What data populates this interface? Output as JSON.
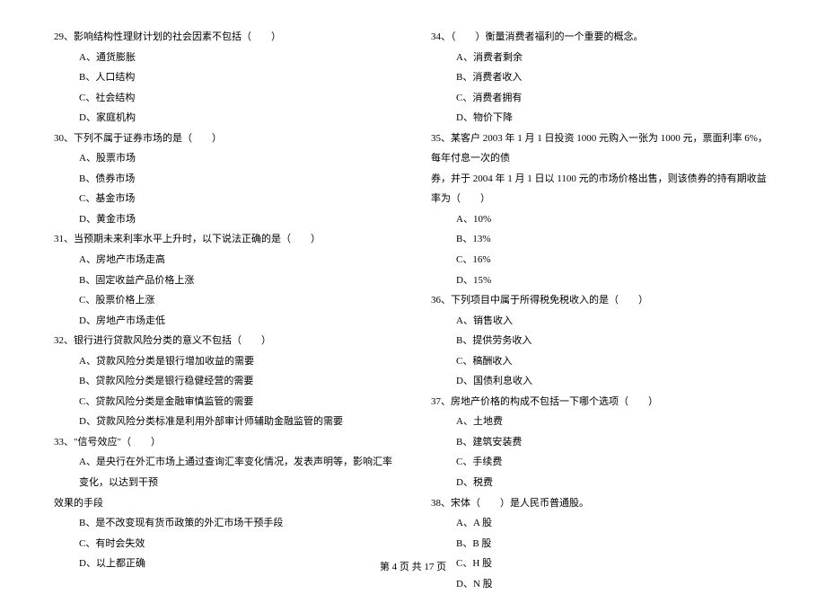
{
  "left_column": {
    "q29": {
      "text": "29、影响结构性理财计划的社会因素不包括（　　）",
      "options": {
        "a": "A、通货膨胀",
        "b": "B、人口结构",
        "c": "C、社会结构",
        "d": "D、家庭机构"
      }
    },
    "q30": {
      "text": "30、下列不属于证券市场的是（　　）",
      "options": {
        "a": "A、股票市场",
        "b": "B、债券市场",
        "c": "C、基金市场",
        "d": "D、黄金市场"
      }
    },
    "q31": {
      "text": "31、当预期未来利率水平上升时，以下说法正确的是（　　）",
      "options": {
        "a": "A、房地产市场走高",
        "b": "B、固定收益产品价格上涨",
        "c": "C、股票价格上涨",
        "d": "D、房地产市场走低"
      }
    },
    "q32": {
      "text": "32、银行进行贷款风险分类的意义不包括（　　）",
      "options": {
        "a": "A、贷款风险分类是银行增加收益的需要",
        "b": "B、贷款风险分类是银行稳健经营的需要",
        "c": "C、贷款风险分类是金融审慎监管的需要",
        "d": "D、贷款风险分类标准是利用外部审计师辅助金融监管的需要"
      }
    },
    "q33": {
      "text": "33、\"信号效应\"（　　）",
      "options": {
        "a": "A、是央行在外汇市场上通过查询汇率变化情况，发表声明等，影响汇率变化，以达到干预",
        "a_cont": "效果的手段",
        "b": "B、是不改变现有货币政策的外汇市场干预手段",
        "c": "C、有时会失效",
        "d": "D、以上都正确"
      }
    }
  },
  "right_column": {
    "q34": {
      "text": "34、（　　）衡量消费者福利的一个重要的概念。",
      "options": {
        "a": "A、消费者剩余",
        "b": "B、消费者收入",
        "c": "C、消费者拥有",
        "d": "D、物价下降"
      }
    },
    "q35": {
      "text": "35、某客户 2003 年 1 月 1 日投资 1000 元购入一张为 1000 元，票面利率 6%，每年付息一次的债",
      "text_cont": "券，并于 2004 年 1 月 1 日以 1100 元的市场价格出售，则该债券的持有期收益率为（　　）",
      "options": {
        "a": "A、10%",
        "b": "B、13%",
        "c": "C、16%",
        "d": "D、15%"
      }
    },
    "q36": {
      "text": "36、下列项目中属于所得税免税收入的是（　　）",
      "options": {
        "a": "A、销售收入",
        "b": "B、提供劳务收入",
        "c": "C、稿酬收入",
        "d": "D、国债利息收入"
      }
    },
    "q37": {
      "text": "37、房地产价格的构成不包括一下哪个选项（　　）",
      "options": {
        "a": "A、土地费",
        "b": "B、建筑安装费",
        "c": "C、手续费",
        "d": "D、税费"
      }
    },
    "q38": {
      "text": "38、宋体（　　）是人民币普通股。",
      "options": {
        "a": "A、A 股",
        "b": "B、B 股",
        "c": "C、H 股",
        "d": "D、N 股"
      }
    }
  },
  "footer": "第 4 页 共 17 页"
}
